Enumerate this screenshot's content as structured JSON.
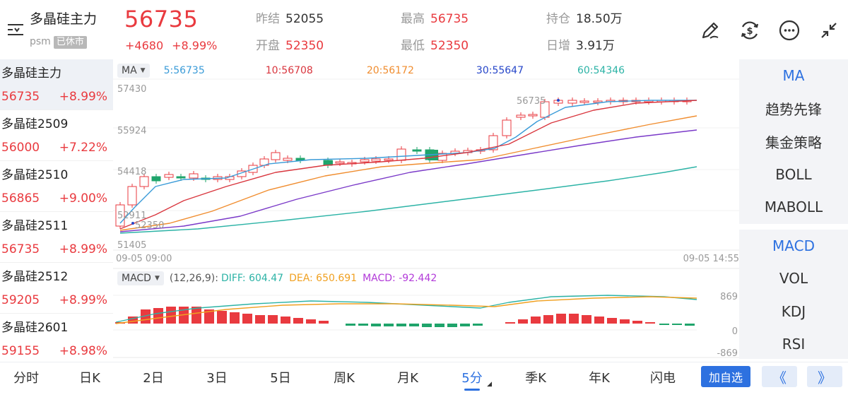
{
  "header": {
    "name": "多晶硅主力",
    "code": "psm",
    "status_tag": "已休市",
    "price": "56735",
    "change": "+4680",
    "change_pct": "+8.99%",
    "stats": {
      "prev_settle_label": "昨结",
      "prev_settle": "52055",
      "open_label": "开盘",
      "open": "52350",
      "high_label": "最高",
      "high": "56735",
      "low_label": "最低",
      "low": "52350",
      "oi_label": "持仓",
      "oi": "18.50万",
      "oi_change_label": "日增",
      "oi_change": "3.91万"
    },
    "icons": [
      "pen-icon",
      "exchange-icon",
      "more-icon",
      "collapse-icon"
    ]
  },
  "contracts": [
    {
      "name": "多晶硅主力",
      "price": "56735",
      "pct": "+8.99%"
    },
    {
      "name": "多晶硅2509",
      "price": "56000",
      "pct": "+7.22%"
    },
    {
      "name": "多晶硅2510",
      "price": "56865",
      "pct": "+9.00%"
    },
    {
      "name": "多晶硅2511",
      "price": "56735",
      "pct": "+8.99%"
    },
    {
      "name": "多晶硅2512",
      "price": "59205",
      "pct": "+8.99%"
    },
    {
      "name": "多晶硅2601",
      "price": "59155",
      "pct": "+8.98%"
    }
  ],
  "main_chart": {
    "indicator": "MA",
    "ma": [
      {
        "label": "5:56735",
        "color": "#3a9bd8"
      },
      {
        "label": "10:56708",
        "color": "#d9363e"
      },
      {
        "label": "20:56172",
        "color": "#f08d2f"
      },
      {
        "label": "30:55647",
        "color": "#7a39c8"
      },
      {
        "label": "60:54346",
        "color": "#2cb3a6"
      }
    ],
    "y_labels": [
      "57430",
      "55924",
      "54418",
      "52911",
      "51405"
    ],
    "low_marker": "52350",
    "high_marker": "56735",
    "time_start": "09-05 09:00",
    "time_end": "09-05 14:55"
  },
  "macd": {
    "indicator": "MACD",
    "params": "(12,26,9):",
    "diff": "DIFF: 604.47",
    "dea": "DEA: 650.691",
    "macd": "MACD: -92.442",
    "y_labels": [
      "869",
      "0",
      "-869"
    ],
    "colors": {
      "diff": "#2cb3a6",
      "dea": "#f0a020",
      "macd": "#b23ad9"
    }
  },
  "indicator_panel": {
    "main": [
      "MA",
      "趋势先锋",
      "集金策略",
      "BOLL",
      "MABOLL"
    ],
    "sub": [
      "MACD",
      "VOL",
      "KDJ",
      "RSI"
    ]
  },
  "tabs": [
    "分时",
    "日K",
    "2日",
    "3日",
    "5日",
    "周K",
    "月K",
    "5分",
    "季K",
    "年K",
    "闪电"
  ],
  "buttons": {
    "add_watch": "加自选",
    "prev": "《",
    "next": "》"
  },
  "colors": {
    "up": "#e93a3f",
    "down": "#1fa46b",
    "accent": "#2d71e0"
  }
}
